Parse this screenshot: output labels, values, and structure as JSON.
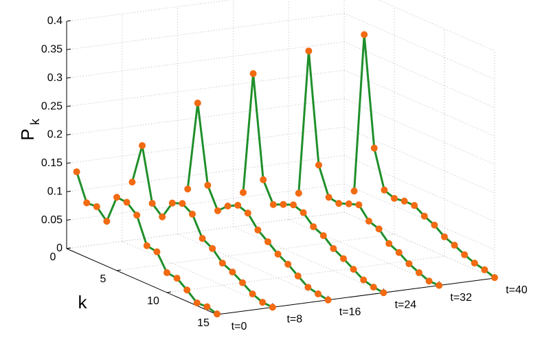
{
  "chart_data": {
    "type": "line3d",
    "x": [
      1,
      2,
      3,
      4,
      5,
      6,
      7,
      8,
      9,
      10,
      11,
      12,
      13,
      14,
      15
    ],
    "xlabel": "k",
    "xlim": [
      0,
      15
    ],
    "xticks": [
      0,
      5,
      10,
      15
    ],
    "zlabel": "P",
    "zlabel_subscript": "k",
    "zlim": [
      0,
      0.4
    ],
    "zticks": [
      0,
      0.05,
      0.1,
      0.15,
      0.2,
      0.25,
      0.3,
      0.35,
      0.4
    ],
    "grid": true,
    "line_color": "#1f8f2a",
    "marker_color": "#f26a12",
    "series": [
      {
        "name": "t=0",
        "values": [
          0.143,
          0.096,
          0.097,
          0.079,
          0.129,
          0.128,
          0.113,
          0.067,
          0.064,
          0.035,
          0.033,
          0.02,
          0.005,
          0.006,
          0.001
        ]
      },
      {
        "name": "t=8",
        "values": [
          0.112,
          0.184,
          0.09,
          0.074,
          0.106,
          0.113,
          0.102,
          0.067,
          0.057,
          0.039,
          0.031,
          0.02,
          0.008,
          0.001,
          0
        ]
      },
      {
        "name": "t=16",
        "values": [
          0.087,
          0.246,
          0.109,
          0.072,
          0.088,
          0.097,
          0.091,
          0.069,
          0.056,
          0.042,
          0.032,
          0.019,
          0.007,
          0.003,
          0
        ]
      },
      {
        "name": "t=24",
        "values": [
          0.068,
          0.285,
          0.106,
          0.07,
          0.078,
          0.085,
          0.079,
          0.062,
          0.054,
          0.039,
          0.029,
          0.018,
          0.007,
          0.002,
          0
        ]
      },
      {
        "name": "t=32",
        "values": [
          0.054,
          0.312,
          0.119,
          0.07,
          0.067,
          0.074,
          0.08,
          0.059,
          0.053,
          0.035,
          0.027,
          0.015,
          0.007,
          0,
          0
        ]
      },
      {
        "name": "t=40",
        "values": [
          0.045,
          0.328,
          0.136,
          0.07,
          0.063,
          0.066,
          0.066,
          0.055,
          0.047,
          0.034,
          0.027,
          0.018,
          0.011,
          0.007,
          0.001
        ]
      }
    ]
  }
}
